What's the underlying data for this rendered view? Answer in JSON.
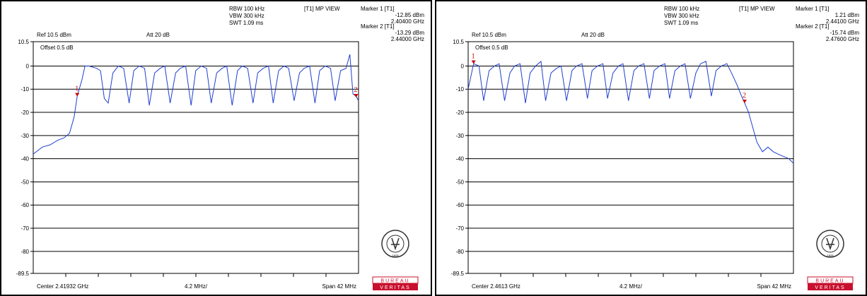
{
  "colors": {
    "trace": "#1f3fd0",
    "grid": "#000000",
    "marker": "#cc0000",
    "logo_band": "#c8102e"
  },
  "logo": {
    "name": "bureau-veritas-logo",
    "text1": "BUREAU",
    "text2": "VERITAS",
    "year": "1828"
  },
  "chart_data": [
    {
      "type": "line",
      "title": "[T1] MP VIEW",
      "settings": {
        "rbw": "RBW 100 kHz",
        "vbw": "VBW 300 kHz",
        "swt": "SWT 1.09 ms",
        "ref": "Ref 10.5 dBm",
        "att": "Att  20 dB",
        "offset": "Offset 0.5 dB"
      },
      "x_labels": {
        "center": "Center 2.41932 GHz",
        "div": "4.2 MHz/",
        "span": "Span 42 MHz"
      },
      "x_range_mhz": [
        2398.32,
        2440.32
      ],
      "ylim": [
        -89.5,
        10.5
      ],
      "y_ticks": [
        "10.5",
        "0",
        "-10",
        "-20",
        "-30",
        "-40",
        "-50",
        "-60",
        "-70",
        "-80",
        "-89.5"
      ],
      "markers": [
        {
          "label": "Marker 1 [T1]",
          "level": "-12.85 dBm",
          "freq": "2.40400 GHz",
          "num": "1",
          "x_mhz": 2404.0,
          "y": -12.85
        },
        {
          "label": "Marker 2 [T1]",
          "level": "-13.29 dBm",
          "freq": "2.44000 GHz",
          "num": "2",
          "x_mhz": 2440.0,
          "y": -13.29
        }
      ],
      "trace_x_mhz": [
        2398.32,
        2399.5,
        2400.5,
        2401.5,
        2402.3,
        2403.0,
        2403.6,
        2404.0,
        2404.6,
        2405.0,
        2405.5,
        2406.5,
        2407.0,
        2407.5,
        2408.0,
        2408.6,
        2409.3,
        2410.0,
        2410.7,
        2411.3,
        2412.0,
        2412.7,
        2413.3,
        2414.0,
        2414.7,
        2415.3,
        2416.0,
        2416.7,
        2417.3,
        2418.0,
        2418.7,
        2419.3,
        2420.0,
        2420.7,
        2421.3,
        2422.0,
        2422.7,
        2423.3,
        2424.0,
        2424.7,
        2425.3,
        2426.0,
        2426.7,
        2427.3,
        2428.0,
        2428.7,
        2429.3,
        2430.0,
        2430.7,
        2431.3,
        2432.0,
        2432.7,
        2433.3,
        2434.0,
        2434.7,
        2435.3,
        2436.0,
        2436.7,
        2437.3,
        2438.0,
        2438.7,
        2439.2,
        2439.6,
        2440.0,
        2440.32
      ],
      "trace_y_dbm": [
        -38,
        -35,
        -34,
        -32,
        -31,
        -29,
        -22,
        -13,
        -6,
        0,
        0,
        -1,
        -2,
        -14,
        -16,
        -3,
        0,
        -1,
        -16,
        -2,
        0,
        -1,
        -17,
        -3,
        -1,
        0,
        -16,
        -3,
        -1,
        0,
        -17,
        -2,
        0,
        -1,
        -16,
        -3,
        -1,
        0,
        -17,
        -2,
        0,
        -1,
        -16,
        -3,
        -1,
        0,
        -16,
        -2,
        0,
        -1,
        -15,
        -3,
        -1,
        0,
        -16,
        -2,
        0,
        -1,
        -15,
        -2,
        -1,
        5,
        -12,
        -13,
        -15
      ]
    },
    {
      "type": "line",
      "title": "[T1] MP VIEW",
      "settings": {
        "rbw": "RBW 100 kHz",
        "vbw": "VBW 300 kHz",
        "swt": "SWT 1.09 ms",
        "ref": "Ref 10.5 dBm",
        "att": "Att  20 dB",
        "offset": "Offset 0.5 dB"
      },
      "x_labels": {
        "center": "Center 2.4613 GHz",
        "div": "4.2 MHz/",
        "span": "Span 42 MHz"
      },
      "x_range_mhz": [
        2440.3,
        2482.3
      ],
      "ylim": [
        -89.5,
        10.5
      ],
      "y_ticks": [
        "10.5",
        "0",
        "-10",
        "-20",
        "-30",
        "-40",
        "-50",
        "-60",
        "-70",
        "-80",
        "-89.5"
      ],
      "markers": [
        {
          "label": "Marker 1 [T1]",
          "level": "1.21 dBm",
          "freq": "2.44100 GHz",
          "num": "1",
          "x_mhz": 2441.0,
          "y": 1.21
        },
        {
          "label": "Marker 2 [T1]",
          "level": "-15.74 dBm",
          "freq": "2.47600 GHz",
          "num": "2",
          "x_mhz": 2476.0,
          "y": -15.74
        }
      ],
      "trace_x_mhz": [
        2440.3,
        2441.0,
        2441.7,
        2442.3,
        2443.0,
        2443.7,
        2444.3,
        2445.0,
        2445.7,
        2446.3,
        2447.0,
        2447.7,
        2448.3,
        2449.0,
        2449.7,
        2450.3,
        2451.0,
        2451.7,
        2452.3,
        2453.0,
        2453.7,
        2454.3,
        2455.0,
        2455.7,
        2456.3,
        2457.0,
        2457.7,
        2458.3,
        2459.0,
        2459.7,
        2460.3,
        2461.0,
        2461.7,
        2462.3,
        2463.0,
        2463.7,
        2464.3,
        2465.0,
        2465.7,
        2466.3,
        2467.0,
        2467.7,
        2468.3,
        2469.0,
        2469.7,
        2470.3,
        2471.0,
        2471.7,
        2472.3,
        2473.0,
        2473.7,
        2474.3,
        2475.0,
        2475.6,
        2476.0,
        2476.5,
        2477.0,
        2477.6,
        2478.3,
        2479.0,
        2479.7,
        2480.3,
        2481.0,
        2481.7,
        2482.3
      ],
      "trace_y_dbm": [
        -10,
        1,
        0,
        -15,
        -2,
        0,
        1,
        -15,
        -3,
        0,
        1,
        -16,
        -3,
        0,
        2,
        -15,
        -3,
        -1,
        0,
        -15,
        -2,
        0,
        1,
        -14,
        -2,
        0,
        1,
        -14,
        -3,
        0,
        1,
        -15,
        -2,
        0,
        1,
        -14,
        -2,
        0,
        1,
        -14,
        -2,
        0,
        1,
        -14,
        -3,
        1,
        2,
        -13,
        -2,
        0,
        1,
        -3,
        -8,
        -13,
        -16,
        -20,
        -26,
        -33,
        -37,
        -35,
        -37,
        -38,
        -39,
        -40,
        -42
      ]
    }
  ]
}
